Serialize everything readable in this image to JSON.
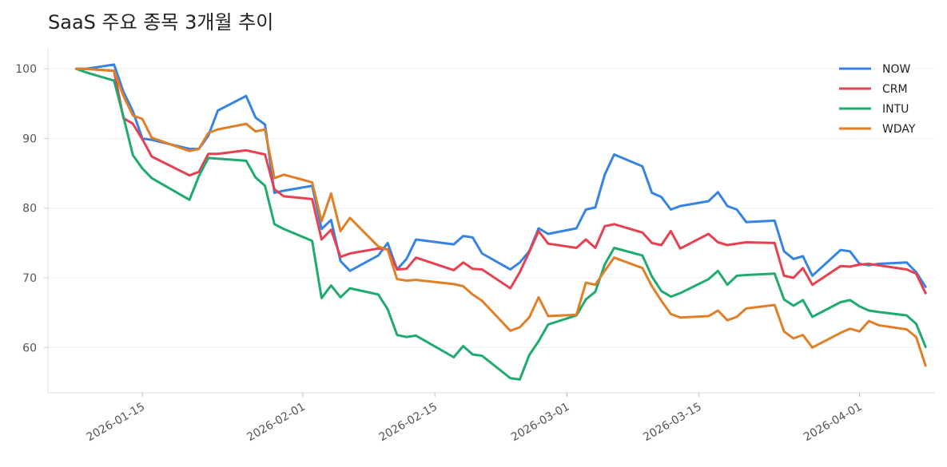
{
  "chart_data": {
    "type": "line",
    "title": "SaaS 주요 종목 3개월 추이",
    "xlabel": "",
    "ylabel": "",
    "x_format": "date",
    "xlim": [
      "2026-01-05",
      "2026-04-09"
    ],
    "ylim": [
      53.5,
      103
    ],
    "y_ticks": [
      60,
      70,
      80,
      90,
      100
    ],
    "y_tick_labels": [
      "60",
      "70",
      "80",
      "90",
      "100"
    ],
    "x_ticks": [
      "2026-01-15",
      "2026-02-01",
      "2026-02-15",
      "2026-03-01",
      "2026-03-15",
      "2026-04-01"
    ],
    "x_tick_labels": [
      "2026-01-15",
      "2026-02-01",
      "2026-02-15",
      "2026-03-01",
      "2026-03-15",
      "2026-04-01"
    ],
    "grid": true,
    "legend": "top-right",
    "x": [
      "2026-01-08",
      "2026-01-09",
      "2026-01-12",
      "2026-01-13",
      "2026-01-14",
      "2026-01-15",
      "2026-01-16",
      "2026-01-20",
      "2026-01-21",
      "2026-01-22",
      "2026-01-23",
      "2026-01-26",
      "2026-01-27",
      "2026-01-28",
      "2026-01-29",
      "2026-01-30",
      "2026-02-02",
      "2026-02-03",
      "2026-02-04",
      "2026-02-05",
      "2026-02-06",
      "2026-02-09",
      "2026-02-10",
      "2026-02-11",
      "2026-02-12",
      "2026-02-13",
      "2026-02-17",
      "2026-02-18",
      "2026-02-19",
      "2026-02-20",
      "2026-02-23",
      "2026-02-24",
      "2026-02-25",
      "2026-02-26",
      "2026-02-27",
      "2026-03-02",
      "2026-03-03",
      "2026-03-04",
      "2026-03-05",
      "2026-03-06",
      "2026-03-09",
      "2026-03-10",
      "2026-03-11",
      "2026-03-12",
      "2026-03-13",
      "2026-03-16",
      "2026-03-17",
      "2026-03-18",
      "2026-03-19",
      "2026-03-20",
      "2026-03-23",
      "2026-03-24",
      "2026-03-25",
      "2026-03-26",
      "2026-03-27",
      "2026-03-30",
      "2026-03-31",
      "2026-04-01",
      "2026-04-02",
      "2026-04-03",
      "2026-04-06",
      "2026-04-07"
    ],
    "series": [
      {
        "name": "NOW",
        "color": "#3584e4",
        "values": [
          100.0,
          100.0,
          100.6,
          96.7,
          93.9,
          90.0,
          89.8,
          88.5,
          88.5,
          90.4,
          94.0,
          96.1,
          93.0,
          92.0,
          82.2,
          82.5,
          83.2,
          77.0,
          78.3,
          72.4,
          71.0,
          73.2,
          75.0,
          71.2,
          72.7,
          75.5,
          74.8,
          76.0,
          75.8,
          73.5,
          71.2,
          72.2,
          73.8,
          77.1,
          76.3,
          77.1,
          79.8,
          80.1,
          84.8,
          87.7,
          86.0,
          82.2,
          81.6,
          79.8,
          80.3,
          81.0,
          82.3,
          80.3,
          79.8,
          78.0,
          78.2,
          73.8,
          72.7,
          73.1,
          70.3,
          74.0,
          73.8,
          72.0,
          71.8,
          72.0,
          72.2,
          70.8
        ],
        "last": 68.7
      },
      {
        "name": "CRM",
        "color": "#e5414f",
        "values": [
          100.0,
          100.0,
          99.7,
          92.9,
          92.1,
          89.9,
          87.4,
          84.7,
          85.2,
          87.8,
          87.8,
          88.3,
          88.0,
          87.7,
          82.7,
          81.7,
          81.3,
          75.5,
          76.9,
          73.0,
          73.5,
          74.2,
          74.1,
          71.2,
          71.3,
          72.9,
          71.1,
          72.2,
          71.3,
          71.2,
          68.5,
          70.8,
          73.7,
          76.7,
          74.9,
          74.3,
          75.5,
          74.3,
          77.4,
          77.7,
          76.5,
          75.0,
          74.7,
          76.7,
          74.2,
          76.3,
          75.1,
          74.7,
          74.9,
          75.1,
          75.0,
          70.3,
          70.0,
          71.4,
          69.0,
          71.7,
          71.6,
          71.9,
          72.0,
          71.8,
          71.2,
          70.6
        ],
        "last": 67.8
      },
      {
        "name": "INTU",
        "color": "#1faa6e",
        "values": [
          100.0,
          99.5,
          98.3,
          93.1,
          87.6,
          85.7,
          84.3,
          81.2,
          84.6,
          87.2,
          87.1,
          86.8,
          84.4,
          83.2,
          77.7,
          77.0,
          75.3,
          67.1,
          68.9,
          67.2,
          68.5,
          67.6,
          65.5,
          61.8,
          61.5,
          61.7,
          58.6,
          60.2,
          59.0,
          58.8,
          55.6,
          55.4,
          58.9,
          60.9,
          63.3,
          64.6,
          66.9,
          68.0,
          71.9,
          74.3,
          73.2,
          70.2,
          68.1,
          67.3,
          67.8,
          69.8,
          71.0,
          69.0,
          70.3,
          70.4,
          70.6,
          66.9,
          66.0,
          66.8,
          64.4,
          66.5,
          66.8,
          65.9,
          65.3,
          65.1,
          64.6,
          63.4
        ],
        "last": 60.1
      },
      {
        "name": "WDAY",
        "color": "#e07f26",
        "values": [
          100.0,
          100.0,
          99.7,
          96.1,
          93.3,
          92.8,
          90.1,
          88.2,
          88.5,
          90.8,
          91.3,
          92.1,
          91.0,
          91.3,
          84.3,
          84.8,
          83.7,
          78.1,
          82.1,
          76.7,
          78.6,
          74.5,
          74.0,
          69.8,
          69.6,
          69.7,
          69.1,
          68.8,
          67.6,
          66.7,
          62.4,
          62.9,
          64.3,
          67.2,
          64.5,
          64.7,
          69.3,
          69.0,
          71.0,
          72.9,
          71.4,
          68.8,
          66.7,
          64.8,
          64.3,
          64.5,
          65.3,
          63.9,
          64.4,
          65.6,
          66.1,
          62.3,
          61.3,
          61.8,
          60.0,
          62.1,
          62.7,
          62.3,
          63.8,
          63.2,
          62.6,
          61.5
        ],
        "last": 57.4
      }
    ],
    "last_x": "2026-04-08"
  }
}
